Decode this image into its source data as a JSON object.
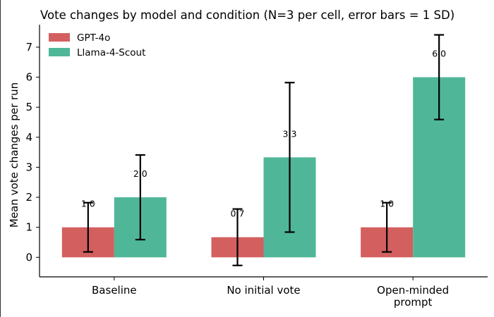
{
  "chart_data": {
    "type": "bar",
    "title": "Vote changes by model and condition (N=3 per cell, error bars = 1 SD)",
    "xlabel": "",
    "ylabel": "Mean vote changes per run",
    "categories": [
      [
        "Baseline"
      ],
      [
        "No initial vote"
      ],
      [
        "Open-minded",
        "prompt"
      ]
    ],
    "series": [
      {
        "name": "GPT-4o",
        "color": "#d45f5f",
        "values": [
          1.0,
          0.67,
          1.0
        ],
        "errors": [
          0.82,
          0.94,
          0.82
        ],
        "labels": [
          "1.0",
          "0.7",
          "1.0"
        ]
      },
      {
        "name": "Llama-4-Scout",
        "color": "#4fb797",
        "values": [
          2.0,
          3.33,
          6.0
        ],
        "errors": [
          1.41,
          2.49,
          1.41
        ],
        "labels": [
          "2.0",
          "3.3",
          "6.0"
        ]
      }
    ],
    "yticks": [
      0,
      1,
      2,
      3,
      4,
      5,
      6,
      7
    ],
    "ylim": [
      -0.65,
      7.75
    ],
    "grid": false,
    "legend_position": "top-left"
  }
}
